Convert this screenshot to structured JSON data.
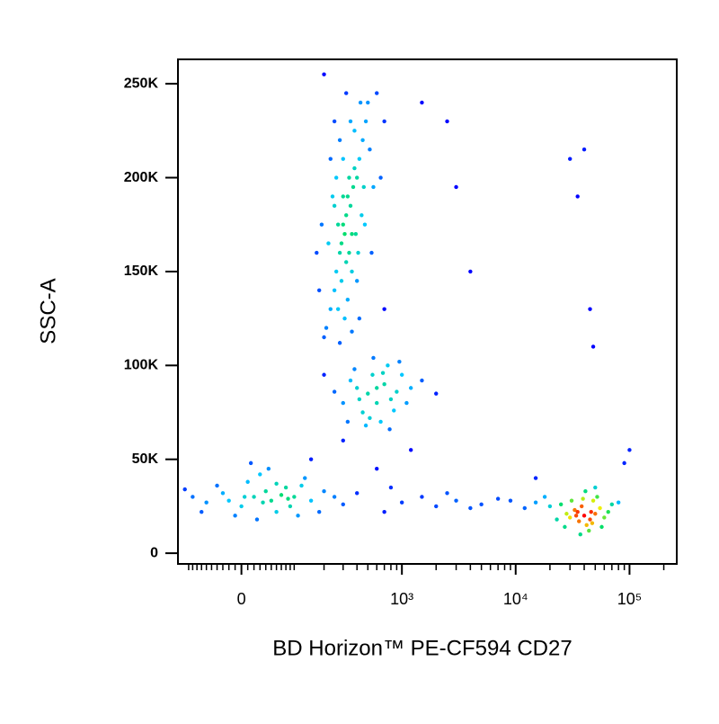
{
  "chart_data": {
    "type": "scatter",
    "x_label": "BD Horizon™ PE-CF594 CD27",
    "y_label": "SSC-A",
    "xscale": "biexponential",
    "xlim": [
      -130,
      260000
    ],
    "ylim": [
      -5700,
      263000
    ],
    "xticks": [
      0,
      {
        "value": 1000,
        "label": "10³"
      },
      {
        "value": 10000,
        "label": "10⁴"
      },
      {
        "value": 100000,
        "label": "10⁵"
      }
    ],
    "xminorticks": [
      -100,
      -90,
      -80,
      -70,
      -60,
      -50,
      -40,
      -30,
      -20,
      -10,
      10,
      20,
      30,
      40,
      50,
      60,
      70,
      80,
      90,
      100,
      200,
      300,
      400,
      500,
      600,
      700,
      800,
      900,
      2000,
      3000,
      4000,
      5000,
      6000,
      7000,
      8000,
      9000,
      20000,
      30000,
      40000,
      50000,
      60000,
      70000,
      80000,
      90000,
      200000
    ],
    "yticks": [
      0,
      {
        "value": 50000,
        "label": "50K"
      },
      {
        "value": 100000,
        "label": "100K"
      },
      {
        "value": 150000,
        "label": "150K"
      },
      {
        "value": 200000,
        "label": "200K"
      },
      {
        "value": 250000,
        "label": "250K"
      }
    ],
    "colormap": [
      "#0000ff",
      "#00c8ff",
      "#00e060",
      "#f0f000",
      "#ff0000"
    ],
    "x": [
      310,
      280,
      350,
      400,
      260,
      300,
      330,
      420,
      250,
      290,
      370,
      450,
      230,
      320,
      380,
      480,
      210,
      340,
      270,
      360,
      500,
      200,
      440,
      240,
      390,
      290,
      520,
      310,
      260,
      410,
      350,
      220,
      560,
      300,
      180,
      470,
      330,
      280,
      600,
      360,
      250,
      430,
      320,
      380,
      270,
      340,
      190,
      650,
      400,
      300,
      230,
      700,
      360,
      280,
      460,
      170,
      320,
      420,
      540,
      250,
      500,
      600,
      700,
      400,
      800,
      550,
      450,
      900,
      350,
      650,
      1000,
      300,
      750,
      480,
      1200,
      380,
      850,
      560,
      420,
      1500,
      250,
      680,
      520,
      1100,
      330,
      950,
      600,
      2000,
      200,
      780,
      20,
      50,
      -30,
      80,
      0,
      40,
      100,
      -60,
      10,
      60,
      120,
      -90,
      30,
      150,
      -10,
      70,
      200,
      -40,
      90,
      5,
      45,
      180,
      -110,
      130,
      25,
      250,
      -20,
      60,
      300,
      15,
      110,
      -70,
      35,
      85,
      400,
      40000,
      35000,
      45000,
      38000,
      50000,
      30000,
      42000,
      36000,
      55000,
      25000,
      48000,
      33000,
      60000,
      20000,
      44000,
      52000,
      28000,
      39000,
      65000,
      15000,
      37000,
      47000,
      18000,
      70000,
      23000,
      41000,
      12000,
      57000,
      31000,
      9000,
      46000,
      34000,
      50000,
      27000,
      80000,
      1000,
      2000,
      3000,
      5000,
      1500,
      700,
      4000,
      7000,
      800,
      2500,
      600,
      1200,
      300,
      150,
      1500,
      2500,
      4000,
      30000,
      35000,
      40000,
      45000,
      48000,
      100000,
      3000,
      700,
      200,
      15000,
      90000
    ],
    "values": [
      170000,
      160000,
      185000,
      200000,
      150000,
      175000,
      190000,
      210000,
      140000,
      165000,
      195000,
      220000,
      130000,
      180000,
      205000,
      230000,
      120000,
      160000,
      175000,
      150000,
      240000,
      115000,
      180000,
      190000,
      170000,
      145000,
      215000,
      125000,
      200000,
      160000,
      230000,
      165000,
      195000,
      210000,
      140000,
      175000,
      135000,
      220000,
      245000,
      118000,
      185000,
      240000,
      155000,
      225000,
      130000,
      200000,
      175000,
      200000,
      145000,
      190000,
      210000,
      230000,
      170000,
      112000,
      195000,
      160000,
      245000,
      125000,
      160000,
      230000,
      85000,
      80000,
      90000,
      88000,
      82000,
      95000,
      75000,
      86000,
      92000,
      70000,
      95000,
      80000,
      100000,
      68000,
      88000,
      98000,
      76000,
      104000,
      82000,
      92000,
      86000,
      96000,
      72000,
      80000,
      70000,
      102000,
      88000,
      85000,
      95000,
      66000,
      30000,
      28000,
      32000,
      35000,
      25000,
      33000,
      30000,
      27000,
      38000,
      22000,
      36000,
      30000,
      42000,
      28000,
      20000,
      31000,
      33000,
      36000,
      25000,
      30000,
      45000,
      22000,
      34000,
      40000,
      18000,
      30000,
      28000,
      37000,
      26000,
      48000,
      20000,
      22000,
      27000,
      29000,
      32000,
      20000,
      22000,
      18000,
      25000,
      21000,
      19000,
      15000,
      17000,
      24000,
      26000,
      28000,
      23000,
      19000,
      25000,
      12000,
      30000,
      21000,
      29000,
      22000,
      27000,
      10000,
      16000,
      30000,
      26000,
      18000,
      33000,
      24000,
      14000,
      28000,
      28000,
      22000,
      20000,
      35000,
      14000,
      27000,
      27000,
      25000,
      28000,
      26000,
      30000,
      22000,
      24000,
      29000,
      35000,
      32000,
      45000,
      55000,
      60000,
      50000,
      240000,
      230000,
      150000,
      210000,
      190000,
      215000,
      130000,
      110000,
      55000,
      195000,
      130000,
      255000,
      40000,
      48000
    ]
  }
}
